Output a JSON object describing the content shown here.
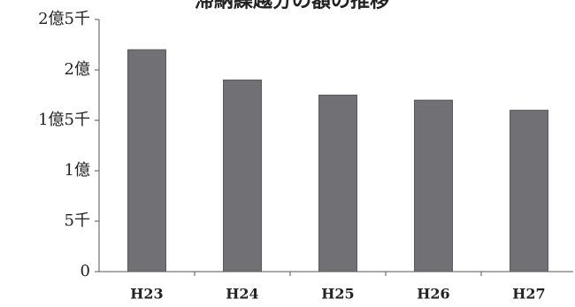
{
  "chart_data": {
    "type": "bar",
    "title": "滞納繰越分の額の推移",
    "categories": [
      "H23",
      "H24",
      "H25",
      "H26",
      "H27"
    ],
    "values": [
      22000,
      19000,
      17500,
      17000,
      16000
    ],
    "color": "#717175",
    "ylim": [
      0,
      25000
    ],
    "yticks": [
      0,
      {
        "value": 5000,
        "label": "5千"
      },
      {
        "value": 10000,
        "label": "1億"
      },
      {
        "value": 15000,
        "label": "1億5千"
      },
      {
        "value": 20000,
        "label": "2億"
      },
      {
        "value": 25000,
        "label": "2億5千"
      }
    ],
    "grid": false
  }
}
